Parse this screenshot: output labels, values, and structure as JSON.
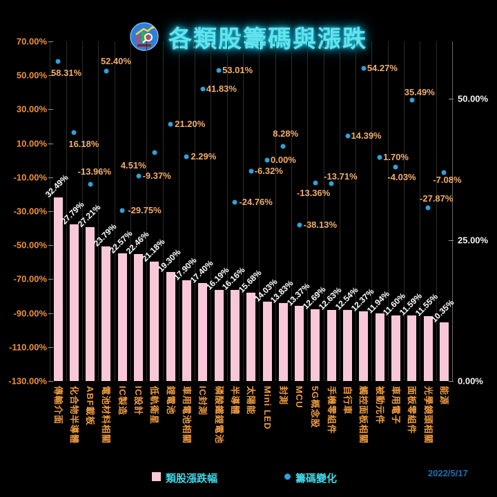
{
  "header": {
    "title": "各類股籌碼與漲跌",
    "logo": "stock-chart-magnifier-badge"
  },
  "footer": {
    "date": "2022/5/17"
  },
  "legend": {
    "bar_label": "類股漲跌幅",
    "dot_label": "籌碼變化"
  },
  "colors": {
    "background": "#000000",
    "title_cyan": "#64e3ec",
    "bar_pink": "#f8c8d8",
    "dot_blue": "#2da2da",
    "axis_orange": "#f09135",
    "category_orange": "#ee9a3d",
    "dot_label_tan": "#f2ae6b",
    "bar_label_white": "#ffffff",
    "right_axis_white": "#f3f3f3",
    "legend_cyan": "#3fd6e6",
    "date_blue": "#1b6fb0"
  },
  "chart_data": {
    "type": "bar",
    "subtype": "dual-axis bar + scatter",
    "title": "各類股籌碼與漲跌",
    "grid": "vertical-only",
    "legend_position": "bottom",
    "categories": [
      "傳輸介面",
      "化合物半導體",
      "ABF載板",
      "電池材料相關",
      "IC製造",
      "IC設計",
      "低軌衛星",
      "鋰電池",
      "車用電池相關",
      "IC封測",
      "磷酸鐵鋰電池",
      "半導體",
      "太陽能",
      "Mini LED",
      "封測",
      "MCU",
      "5G概念股",
      "手機零組件",
      "自行車",
      "觸控面板相關",
      "被動元件",
      "車用電子",
      "面板零組件",
      "光學鏡頭相關",
      "能源"
    ],
    "series": [
      {
        "name": "類股漲跌幅",
        "type": "bar",
        "axis": "right",
        "values": [
          32.49,
          27.79,
          27.21,
          23.79,
          22.57,
          22.46,
          21.18,
          19.3,
          17.9,
          17.4,
          16.19,
          16.16,
          15.68,
          14.03,
          13.83,
          13.37,
          12.69,
          12.63,
          12.54,
          12.37,
          11.94,
          11.6,
          11.59,
          11.55,
          10.35
        ]
      },
      {
        "name": "籌碼變化",
        "type": "scatter",
        "axis": "left",
        "values": [
          58.31,
          16.18,
          -13.96,
          52.4,
          -29.75,
          -9.37,
          4.51,
          21.2,
          2.29,
          41.83,
          53.01,
          -24.76,
          -6.32,
          0.0,
          8.28,
          -38.13,
          -13.36,
          -13.71,
          14.39,
          54.27,
          1.7,
          -4.03,
          35.49,
          -27.87,
          -7.08
        ],
        "label_offsets": [
          [
            -10,
            10
          ],
          [
            -8,
            10
          ],
          [
            -18,
            -25
          ],
          [
            -8,
            -21
          ],
          [
            8,
            -7
          ],
          [
            6,
            -7
          ],
          [
            -49,
            12
          ],
          [
            6,
            -7
          ],
          [
            6,
            -7
          ],
          [
            5,
            -7
          ],
          [
            5,
            -7
          ],
          [
            6,
            -7
          ],
          [
            5,
            -7
          ],
          [
            5,
            -7
          ],
          [
            -15,
            -25
          ],
          [
            6,
            -7
          ],
          [
            -27,
            8
          ],
          [
            -11,
            -17
          ],
          [
            5,
            -7
          ],
          [
            5,
            -7
          ],
          [
            5,
            -7
          ],
          [
            -12,
            8
          ],
          [
            -11,
            -18
          ],
          [
            -12,
            -20
          ],
          [
            -16,
            4
          ]
        ]
      }
    ],
    "left_axis": {
      "min": -130,
      "max": 70,
      "tick_step": 20,
      "ticks": [
        70,
        50,
        30,
        10,
        -10,
        -30,
        -50,
        -70,
        -90,
        -110,
        -130
      ],
      "format": "0.00%"
    },
    "right_axis": {
      "min": 0,
      "max": 60.15,
      "ticks": [
        50,
        25,
        0
      ],
      "format": "0.00%"
    }
  }
}
